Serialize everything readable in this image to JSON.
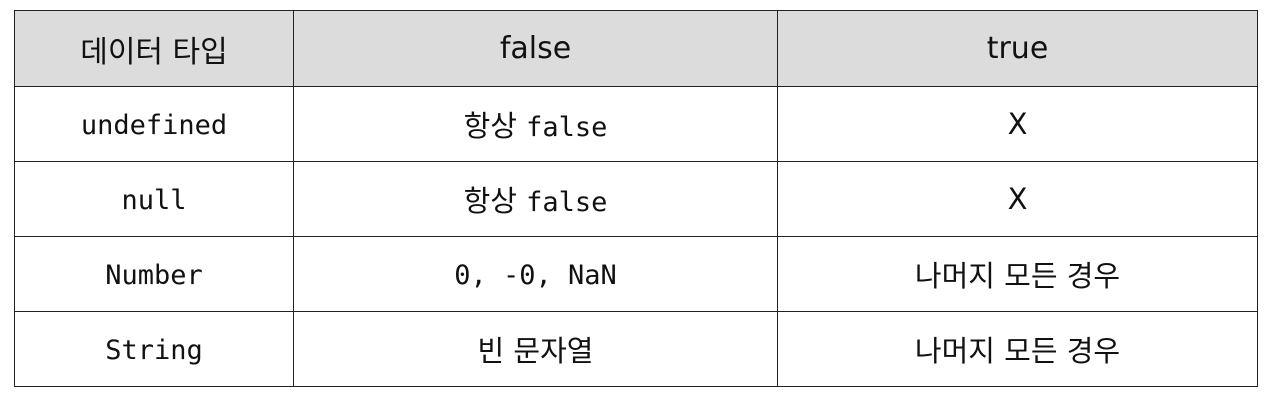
{
  "headers": [
    "데이터 타입",
    "false",
    "true"
  ],
  "rows": [
    {
      "type": "undefined",
      "false_value_prefix": "항상 ",
      "false_value_code": "false",
      "true_value": "X"
    },
    {
      "type": "null",
      "false_value_prefix": "항상 ",
      "false_value_code": "false",
      "true_value": "X"
    },
    {
      "type": "Number",
      "false_value_prefix": "",
      "false_value_code": "0, -0, NaN",
      "true_value": "나머지 모든 경우"
    },
    {
      "type": "String",
      "false_value_prefix": "빈 문자열",
      "false_value_code": "",
      "true_value": "나머지 모든 경우"
    }
  ]
}
